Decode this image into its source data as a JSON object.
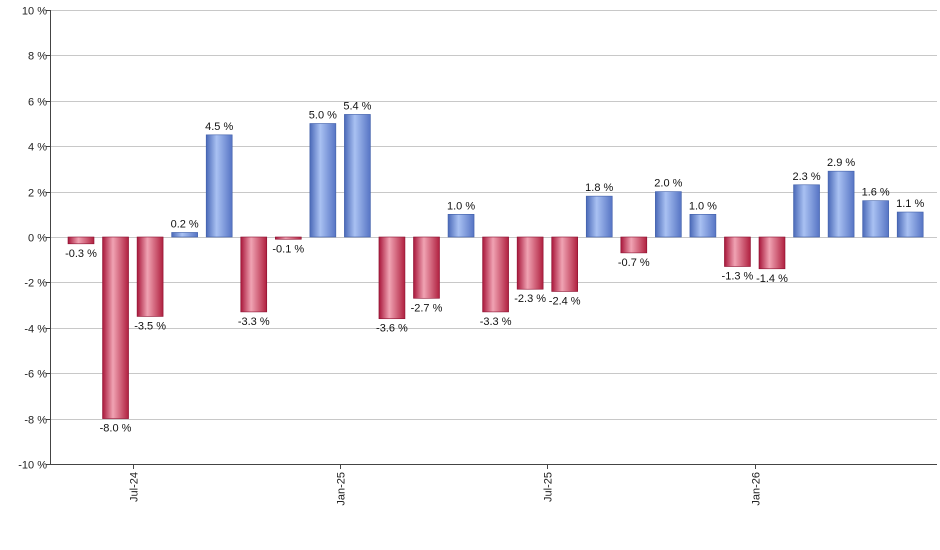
{
  "chart_data": {
    "type": "bar",
    "title": "",
    "xlabel": "",
    "ylabel": "",
    "ylim": [
      -10,
      10
    ],
    "yticks": [
      10,
      8,
      6,
      4,
      2,
      0,
      -2,
      -4,
      -6,
      -8,
      -10
    ],
    "ytick_labels": [
      "10 %",
      "8 %",
      "6 %",
      "4 %",
      "2 %",
      "0 %",
      "-2 %",
      "-4 %",
      "-6 %",
      "-8 %",
      "-10 %"
    ],
    "grid": true,
    "legend": "none",
    "colors": {
      "positive": "#6f90d8",
      "negative": "#c8304e"
    },
    "values": [
      -0.3,
      -8.0,
      -3.5,
      0.2,
      4.5,
      -3.3,
      -0.1,
      5.0,
      5.4,
      -3.6,
      -2.7,
      1.0,
      -3.3,
      -2.3,
      -2.4,
      1.8,
      -0.7,
      2.0,
      1.0,
      -1.3,
      -1.4,
      2.3,
      2.9,
      1.6,
      1.1
    ],
    "value_labels": [
      "-0.3 %",
      "-8.0 %",
      "-3.5 %",
      "0.2 %",
      "4.5 %",
      "-3.3 %",
      "-0.1 %",
      "5.0 %",
      "5.4 %",
      "-3.6 %",
      "-2.7 %",
      "1.0 %",
      "-3.3 %",
      "-2.3 %",
      "-2.4 %",
      "1.8 %",
      "-0.7 %",
      "2.0 %",
      "1.0 %",
      "-1.3 %",
      "-1.4 %",
      "2.3 %",
      "2.9 %",
      "1.6 %",
      "1.1 %"
    ],
    "x_tick_labels": [
      {
        "label": "Jul-24",
        "index": 1.5
      },
      {
        "label": "Jan-25",
        "index": 7.5
      },
      {
        "label": "Jul-25",
        "index": 13.5
      },
      {
        "label": "Jan-26",
        "index": 19.5
      }
    ]
  }
}
